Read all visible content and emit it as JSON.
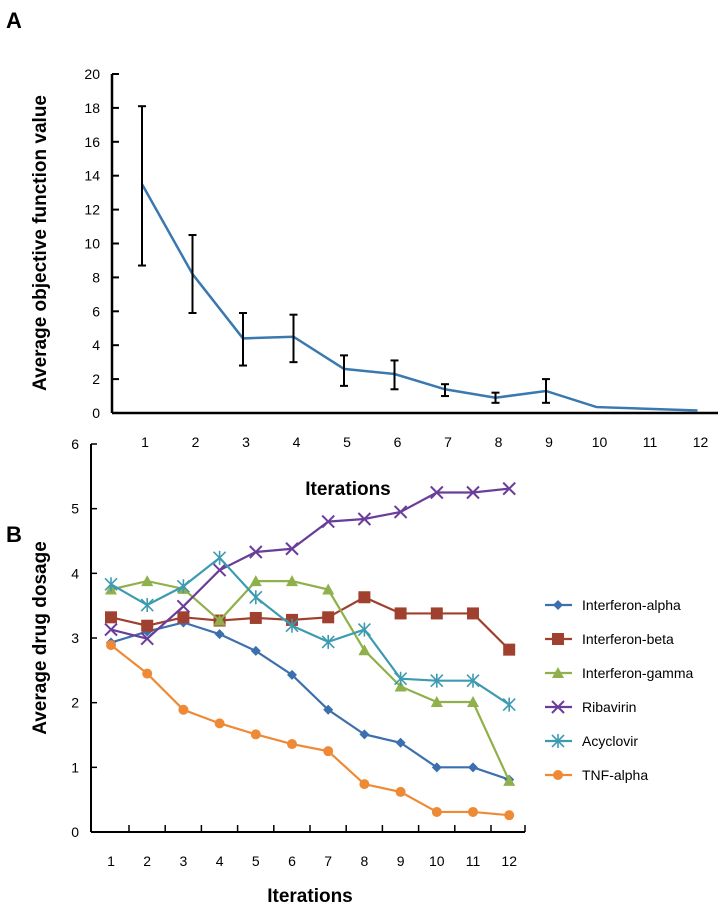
{
  "chart_data": [
    {
      "panel_label": "A",
      "type": "line",
      "xlabel": "Iterations",
      "ylabel": "Average objective function value",
      "categories": [
        "1",
        "2",
        "3",
        "4",
        "5",
        "6",
        "7",
        "8",
        "9",
        "10",
        "11",
        "12"
      ],
      "yticks": [
        "0",
        "2",
        "4",
        "6",
        "8",
        "10",
        "12",
        "14",
        "16",
        "18",
        "20"
      ],
      "ylim": [
        0,
        20
      ],
      "grid": false,
      "series": [
        {
          "color": "#3a78b0",
          "x": [
            1,
            2,
            3,
            4,
            5,
            6,
            7,
            8,
            9,
            10,
            12
          ],
          "values": [
            13.5,
            8.2,
            4.4,
            4.5,
            2.6,
            2.3,
            1.4,
            0.9,
            1.3,
            0.35,
            0.15
          ],
          "error_low": [
            8.7,
            5.9,
            2.8,
            3.0,
            1.6,
            1.4,
            1.0,
            0.6,
            0.6,
            null,
            null
          ],
          "error_high": [
            18.1,
            10.5,
            5.9,
            5.8,
            3.4,
            3.1,
            1.7,
            1.2,
            2.0,
            null,
            null
          ]
        }
      ]
    },
    {
      "panel_label": "B",
      "type": "line",
      "xlabel": "Iterations",
      "ylabel": "Average drug dosage",
      "categories": [
        "1",
        "2",
        "3",
        "4",
        "5",
        "6",
        "7",
        "8",
        "9",
        "10",
        "11",
        "12"
      ],
      "yticks": [
        "0",
        "1",
        "2",
        "3",
        "4",
        "5",
        "6"
      ],
      "ylim": [
        0,
        6
      ],
      "grid": false,
      "legend_position": "right",
      "series": [
        {
          "name": "Interferon-alpha",
          "color": "#3c6fad",
          "marker": "diamond",
          "values": [
            2.93,
            3.1,
            3.24,
            3.06,
            2.8,
            2.43,
            1.89,
            1.51,
            1.38,
            1.0,
            1.0,
            0.81
          ]
        },
        {
          "name": "Interferon-beta",
          "color": "#a0402e",
          "marker": "square",
          "values": [
            3.32,
            3.19,
            3.32,
            3.27,
            3.31,
            3.28,
            3.32,
            3.63,
            3.38,
            3.38,
            3.38,
            2.82
          ]
        },
        {
          "name": "Interferon-gamma",
          "color": "#8fb04a",
          "marker": "triangle",
          "values": [
            3.75,
            3.88,
            3.76,
            3.27,
            3.88,
            3.88,
            3.75,
            2.81,
            2.25,
            2.01,
            2.01,
            0.79
          ]
        },
        {
          "name": "Ribavirin",
          "color": "#6a3d9a",
          "marker": "x",
          "values": [
            3.13,
            2.99,
            3.49,
            4.05,
            4.33,
            4.38,
            4.8,
            4.84,
            4.95,
            5.25,
            5.25,
            5.31
          ]
        },
        {
          "name": "Acyclovir",
          "color": "#3d9bb0",
          "marker": "asterisk",
          "values": [
            3.83,
            3.51,
            3.8,
            4.24,
            3.63,
            3.19,
            2.94,
            3.13,
            2.37,
            2.34,
            2.34,
            1.97
          ]
        },
        {
          "name": "TNF-alpha",
          "color": "#ee8a35",
          "marker": "circle",
          "values": [
            2.89,
            2.45,
            1.89,
            1.68,
            1.51,
            1.36,
            1.25,
            0.74,
            0.62,
            0.31,
            0.31,
            0.26
          ]
        }
      ]
    }
  ]
}
